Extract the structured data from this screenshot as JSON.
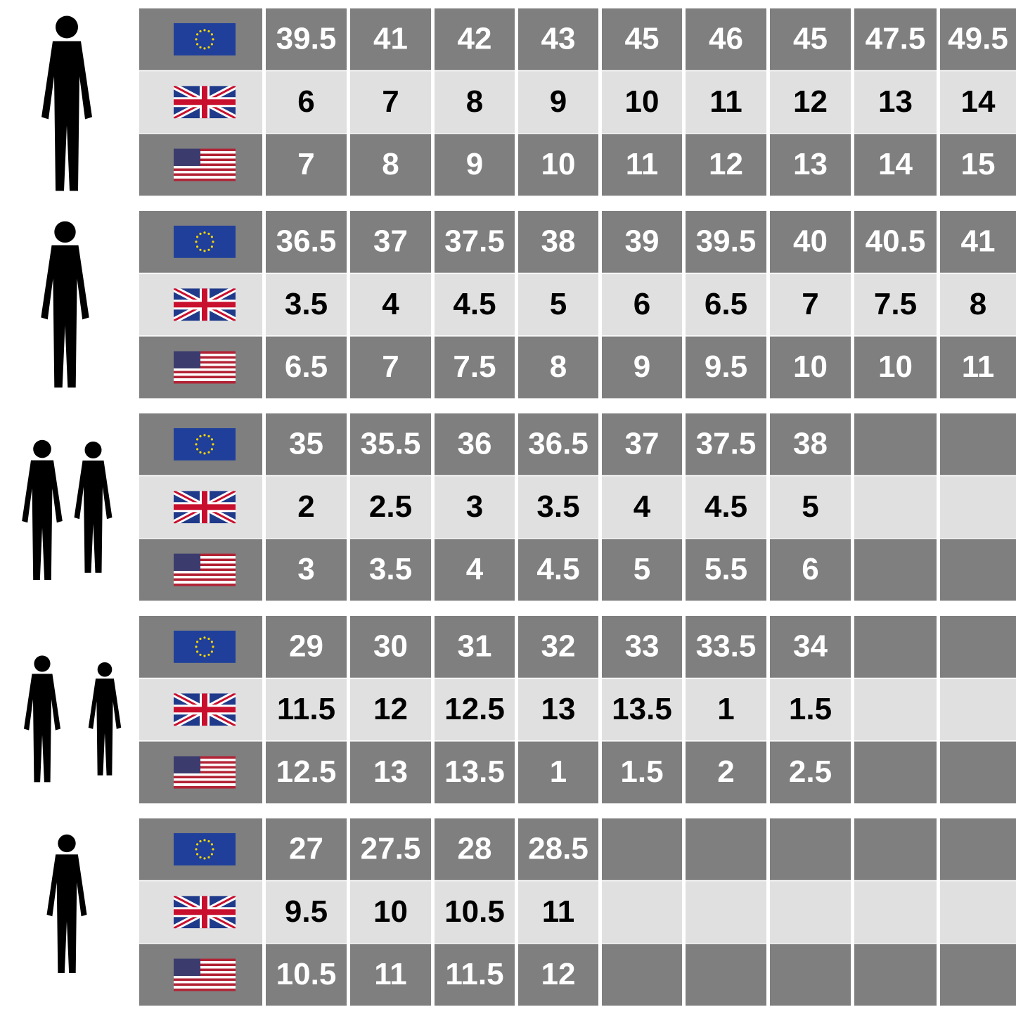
{
  "groups": [
    {
      "eu": [
        "39.5",
        "41",
        "42",
        "43",
        "45",
        "46",
        "45",
        "47.5",
        "49.5"
      ],
      "uk": [
        "6",
        "7",
        "8",
        "9",
        "10",
        "11",
        "12",
        "13",
        "14"
      ],
      "us": [
        "7",
        "8",
        "9",
        "10",
        "11",
        "12",
        "13",
        "14",
        "15"
      ]
    },
    {
      "eu": [
        "36.5",
        "37",
        "37.5",
        "38",
        "39",
        "39.5",
        "40",
        "40.5",
        "41"
      ],
      "uk": [
        "3.5",
        "4",
        "4.5",
        "5",
        "6",
        "6.5",
        "7",
        "7.5",
        "8"
      ],
      "us": [
        "6.5",
        "7",
        "7.5",
        "8",
        "9",
        "9.5",
        "10",
        "10",
        "11"
      ]
    },
    {
      "eu": [
        "35",
        "35.5",
        "36",
        "36.5",
        "37",
        "37.5",
        "38"
      ],
      "uk": [
        "2",
        "2.5",
        "3",
        "3.5",
        "4",
        "4.5",
        "5"
      ],
      "us": [
        "3",
        "3.5",
        "4",
        "4.5",
        "5",
        "5.5",
        "6"
      ]
    },
    {
      "eu": [
        "29",
        "30",
        "31",
        "32",
        "33",
        "33.5",
        "34"
      ],
      "uk": [
        "11.5",
        "12",
        "12.5",
        "13",
        "13.5",
        "1",
        "1.5"
      ],
      "us": [
        "12.5",
        "13",
        "13.5",
        "1",
        "1.5",
        "2",
        "2.5"
      ]
    },
    {
      "eu": [
        "27",
        "27.5",
        "28",
        "28.5"
      ],
      "uk": [
        "9.5",
        "10",
        "10.5",
        "11"
      ],
      "us": [
        "10.5",
        "11",
        "11.5",
        "12"
      ]
    }
  ]
}
